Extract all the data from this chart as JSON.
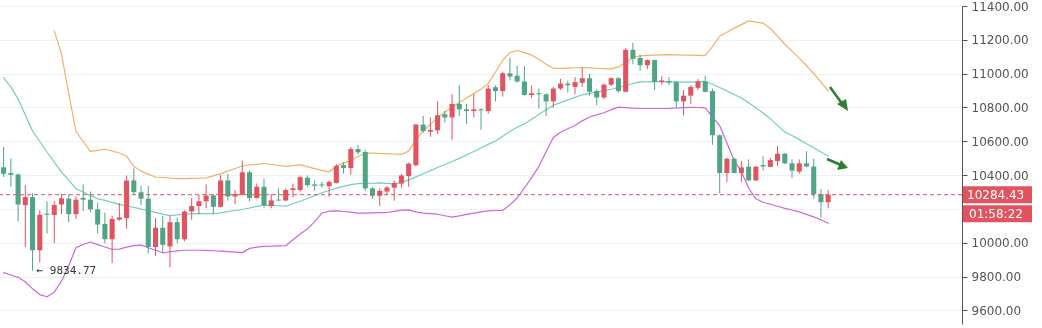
{
  "chart_data": {
    "type": "candlestick",
    "categories": [
      null,
      null,
      null,
      null,
      null,
      null,
      null,
      null,
      null,
      null,
      null,
      null,
      null,
      null,
      null,
      null,
      null,
      null,
      null,
      null,
      null,
      null,
      null,
      null,
      null,
      null,
      null,
      null,
      null,
      null,
      null,
      null,
      null,
      null,
      null,
      null,
      null,
      null,
      null,
      null,
      null,
      null,
      null,
      null,
      null,
      null,
      null,
      null,
      null,
      null,
      null,
      null,
      null,
      null,
      null,
      null,
      null,
      null,
      null,
      null,
      null,
      null,
      null,
      null,
      null,
      null,
      null,
      null,
      null,
      null,
      null,
      null,
      null,
      null,
      null,
      null,
      null,
      null,
      null,
      null,
      null,
      null,
      null,
      null,
      null,
      null,
      null,
      null,
      null,
      null,
      null,
      null,
      null,
      null,
      null,
      null,
      null,
      null,
      null,
      null,
      null,
      null,
      null,
      null,
      null,
      null,
      null,
      null,
      null,
      null,
      null,
      null,
      null,
      null,
      null,
      null,
      null,
      null,
      null,
      null,
      null,
      null,
      null,
      null,
      null,
      null,
      null,
      null,
      null,
      null,
      null,
      null,
      null
    ],
    "ohlc": [
      [
        10446,
        10566,
        10389,
        10408
      ],
      [
        10413,
        10499,
        10331,
        10402
      ],
      [
        10404,
        10410,
        10127,
        10227
      ],
      [
        10223,
        10341,
        9975,
        10270
      ],
      [
        10270,
        10293,
        9834.77,
        9956
      ],
      [
        9956,
        10193,
        9884,
        10166
      ],
      [
        10173,
        10246,
        10055,
        10166
      ],
      [
        10164,
        10246,
        9998,
        10223
      ],
      [
        10227,
        10288,
        10169,
        10263
      ],
      [
        10261,
        10288,
        10122,
        10169
      ],
      [
        10169,
        10274,
        10141,
        10255
      ],
      [
        10265,
        10345,
        10188,
        10255
      ],
      [
        10255,
        10303,
        10179,
        10198
      ],
      [
        10198,
        10236,
        10055,
        10108
      ],
      [
        10112,
        10179,
        9998,
        10021
      ],
      [
        10021,
        10160,
        9880,
        10141
      ],
      [
        10137,
        10236,
        10131,
        10150
      ],
      [
        10146,
        10398,
        10084,
        10369
      ],
      [
        10369,
        10440,
        10284,
        10299
      ],
      [
        10299,
        10337,
        10223,
        10261
      ],
      [
        10261,
        10337,
        9937,
        9975
      ],
      [
        9975,
        10146,
        9922,
        10089
      ],
      [
        10089,
        10160,
        9941,
        9988
      ],
      [
        9979,
        10160,
        9855,
        10122
      ],
      [
        10122,
        10150,
        9998,
        10021
      ],
      [
        10021,
        10193,
        10008,
        10185
      ],
      [
        10185,
        10265,
        10137,
        10217
      ],
      [
        10217,
        10284,
        10169,
        10246
      ],
      [
        10246,
        10345,
        10204,
        10280
      ],
      [
        10280,
        10288,
        10169,
        10213
      ],
      [
        10213,
        10402,
        10210,
        10369
      ],
      [
        10369,
        10408,
        10249,
        10274
      ],
      [
        10274,
        10312,
        10227,
        10288
      ],
      [
        10284,
        10484,
        10280,
        10417
      ],
      [
        10417,
        10427,
        10246,
        10265
      ],
      [
        10265,
        10350,
        10261,
        10331
      ],
      [
        10331,
        10379,
        10208,
        10223
      ],
      [
        10217,
        10288,
        10204,
        10251
      ],
      [
        10255,
        10322,
        10246,
        10250
      ],
      [
        10250,
        10322,
        10246,
        10312
      ],
      [
        10312,
        10350,
        10268,
        10322
      ],
      [
        10312,
        10398,
        10303,
        10388
      ],
      [
        10385,
        10398,
        10331,
        10341
      ],
      [
        10345,
        10369,
        10307,
        10337
      ],
      [
        10345,
        10360,
        10326,
        10339
      ],
      [
        10335,
        10369,
        10274,
        10360
      ],
      [
        10354,
        10465,
        10350,
        10455
      ],
      [
        10459,
        10478,
        10408,
        10442
      ],
      [
        10442,
        10566,
        10402,
        10554
      ],
      [
        10554,
        10579,
        10522,
        10535
      ],
      [
        10537,
        10550,
        10307,
        10322
      ],
      [
        10322,
        10331,
        10261,
        10278
      ],
      [
        10278,
        10322,
        10217,
        10307
      ],
      [
        10303,
        10335,
        10284,
        10327
      ],
      [
        10326,
        10369,
        10249,
        10354
      ],
      [
        10350,
        10408,
        10326,
        10398
      ],
      [
        10394,
        10474,
        10331,
        10468
      ],
      [
        10459,
        10703,
        10451,
        10699
      ],
      [
        10699,
        10750,
        10650,
        10661
      ],
      [
        10657,
        10741,
        10627,
        10667
      ],
      [
        10665,
        10836,
        10642,
        10754
      ],
      [
        10760,
        10779,
        10712,
        10741
      ],
      [
        10741,
        10878,
        10608,
        10821
      ],
      [
        10821,
        10931,
        10750,
        10789
      ],
      [
        10789,
        10821,
        10703,
        10779
      ],
      [
        10779,
        10878,
        10741,
        10789
      ],
      [
        10789,
        10795,
        10669,
        10783
      ],
      [
        10779,
        10931,
        10764,
        10912
      ],
      [
        10920,
        10931,
        10836,
        10897
      ],
      [
        10897,
        11011,
        10865,
        11002
      ],
      [
        11002,
        11093,
        10960,
        10983
      ],
      [
        10988,
        11046,
        10946,
        10954
      ],
      [
        10954,
        11046,
        10870,
        10874
      ],
      [
        10874,
        10931,
        10855,
        10884
      ],
      [
        10884,
        10912,
        10794,
        10878
      ],
      [
        10878,
        10884,
        10750,
        10836
      ],
      [
        10836,
        10922,
        10798,
        10912
      ],
      [
        10912,
        10969,
        10903,
        10941
      ],
      [
        10941,
        10960,
        10889,
        10931
      ],
      [
        10922,
        10979,
        10878,
        10950
      ],
      [
        10946,
        11036,
        10922,
        10973
      ],
      [
        10973,
        10998,
        10870,
        10893
      ],
      [
        10897,
        10908,
        10813,
        10859
      ],
      [
        10859,
        10941,
        10851,
        10935
      ],
      [
        10935,
        10979,
        10927,
        10973
      ],
      [
        10973,
        10979,
        10889,
        10897
      ],
      [
        10893,
        11150,
        10889,
        11141
      ],
      [
        11141,
        11183,
        11055,
        11088
      ],
      [
        11093,
        11112,
        11017,
        11050
      ],
      [
        11050,
        11084,
        11027,
        11080
      ],
      [
        11080,
        11084,
        10903,
        10950
      ],
      [
        10950,
        10985,
        10935,
        10960
      ],
      [
        10955,
        10979,
        10931,
        10947
      ],
      [
        10950,
        10955,
        10798,
        10836
      ],
      [
        10836,
        10903,
        10754,
        10870
      ],
      [
        10870,
        10931,
        10821,
        10922
      ],
      [
        10916,
        10969,
        10903,
        10954
      ],
      [
        10954,
        10988,
        10889,
        10893
      ],
      [
        10897,
        10912,
        10579,
        10636
      ],
      [
        10636,
        10640,
        10293,
        10413
      ],
      [
        10413,
        10503,
        10360,
        10497
      ],
      [
        10497,
        10503,
        10410,
        10413
      ],
      [
        10413,
        10484,
        10360,
        10446
      ],
      [
        10450,
        10493,
        10364,
        10369
      ],
      [
        10369,
        10455,
        10364,
        10450
      ],
      [
        10459,
        10512,
        10427,
        10451
      ],
      [
        10449,
        10503,
        10446,
        10489
      ],
      [
        10484,
        10573,
        10455,
        10527
      ],
      [
        10527,
        10531,
        10466,
        10470
      ],
      [
        10470,
        10493,
        10383,
        10427
      ],
      [
        10421,
        10493,
        10408,
        10470
      ],
      [
        10470,
        10541,
        10446,
        10451
      ],
      [
        10451,
        10497,
        10261,
        10288
      ],
      [
        10288,
        10318,
        10147,
        10240
      ],
      [
        10240,
        10312,
        10204,
        10284.43
      ],
      null,
      null,
      null,
      null,
      null,
      null,
      null,
      null,
      null,
      null,
      null,
      null,
      null,
      null,
      null,
      null,
      null,
      null
    ],
    "colors": [
      "#4fa585",
      "#4fa585",
      "#4fa585",
      "#e0535f",
      "#4fa585",
      "#e0535f",
      "#4fa585",
      "#e0535f",
      "#e0535f",
      "#4fa585",
      "#e0535f",
      "#4fa585",
      "#4fa585",
      "#4fa585",
      "#4fa585",
      "#e0535f",
      "#e0535f",
      "#e0535f",
      "#4fa585",
      "#4fa585",
      "#4fa585",
      "#e0535f",
      "#4fa585",
      "#e0535f",
      "#4fa585",
      "#e0535f",
      "#e0535f",
      "#e0535f",
      "#e0535f",
      "#4fa585",
      "#e0535f",
      "#4fa585",
      "#e0535f",
      "#e0535f",
      "#4fa585",
      "#e0535f",
      "#4fa585",
      "#e0535f",
      "#4fa585",
      "#e0535f",
      "#e0535f",
      "#e0535f",
      "#4fa585",
      "#4fa585",
      "#4fa585",
      "#e0535f",
      "#e0535f",
      "#4fa585",
      "#e0535f",
      "#4fa585",
      "#4fa585",
      "#4fa585",
      "#e0535f",
      "#e0535f",
      "#e0535f",
      "#e0535f",
      "#e0535f",
      "#e0535f",
      "#4fa585",
      "#e0535f",
      "#e0535f",
      "#4fa585",
      "#e0535f",
      "#4fa585",
      "#4fa585",
      "#e0535f",
      "#4fa585",
      "#e0535f",
      "#4fa585",
      "#e0535f",
      "#4fa585",
      "#4fa585",
      "#4fa585",
      "#e0535f",
      "#4fa585",
      "#4fa585",
      "#e0535f",
      "#e0535f",
      "#4fa585",
      "#e0535f",
      "#e0535f",
      "#4fa585",
      "#4fa585",
      "#e0535f",
      "#e0535f",
      "#4fa585",
      "#e0535f",
      "#4fa585",
      "#4fa585",
      "#e0535f",
      "#4fa585",
      "#e0535f",
      "#4fa585",
      "#4fa585",
      "#e0535f",
      "#e0535f",
      "#e0535f",
      "#4fa585",
      "#4fa585",
      "#4fa585",
      "#e0535f",
      "#4fa585",
      "#e0535f",
      "#4fa585",
      "#e0535f",
      "#4fa585",
      "#e0535f",
      "#e0535f",
      "#4fa585",
      "#4fa585",
      "#e0535f",
      "#4fa585",
      "#4fa585",
      "#4fa585",
      "#e0535f",
      null,
      null,
      null,
      null,
      null,
      null,
      null,
      null,
      null,
      null,
      null,
      null,
      null,
      null,
      null,
      null,
      null,
      null
    ],
    "series": [
      {
        "type": "line",
        "color": "#efb06a",
        "values": [
          null,
          null,
          null,
          null,
          null,
          null,
          null,
          11253,
          11117,
          10884,
          10659,
          10599,
          10541,
          10547,
          10553,
          10543,
          10531,
          10513,
          10451,
          10424,
          10406,
          10389,
          10386,
          10383,
          10380,
          10380,
          10381,
          10382,
          10384,
          10396,
          10409,
          10424,
          10439,
          10454,
          10460,
          10464,
          10469,
          10463,
          10457,
          10452,
          10456,
          10461,
          10450,
          10439,
          10428,
          10419,
          10454,
          10471,
          10487,
          10510,
          10531,
          10530,
          10528,
          10527,
          10525,
          10523,
          10542,
          10610,
          10662,
          10700,
          10740,
          10773,
          10802,
          10830,
          10856,
          10882,
          10908,
          10941,
          11010,
          11078,
          11125,
          11137,
          11124,
          11111,
          11083,
          11056,
          11032,
          11031,
          11033,
          11035,
          11036,
          11034,
          11032,
          11030,
          11028,
          11040,
          11067,
          11094,
          11105,
          11108,
          11110,
          11111,
          11112,
          11111,
          11110,
          11109,
          11108,
          11107,
          11160,
          11221,
          11245,
          11269,
          11290,
          11312,
          11305,
          11299,
          11267,
          11222,
          11174,
          11133,
          11092,
          11048,
          11001,
          10950,
          10899,
          null,
          null,
          null,
          null,
          null,
          null,
          null,
          null,
          null,
          null,
          null,
          null,
          null,
          null,
          null,
          null,
          null,
          null
        ]
      },
      {
        "type": "line",
        "color": "#6fd0bd",
        "values": [
          10976,
          10921,
          10851,
          10755,
          10661,
          10599,
          10537,
          10477,
          10418,
          10370,
          10320,
          10300,
          10279,
          10261,
          10251,
          10239,
          10227,
          10218,
          10209,
          10200,
          10190,
          10180,
          10170,
          10161,
          10165,
          10170,
          10173,
          10173,
          10173,
          10173,
          10177,
          10184,
          10191,
          10197,
          10206,
          10215,
          10223,
          10221,
          10219,
          10217,
          10231,
          10246,
          10262,
          10279,
          10296,
          10309,
          10323,
          10334,
          10344,
          10350,
          10351,
          10352,
          10354,
          10351,
          10347,
          10358,
          10371,
          10390,
          10408,
          10427,
          10445,
          10463,
          10481,
          10499,
          10519,
          10540,
          10561,
          10582,
          10602,
          10630,
          10660,
          10683,
          10703,
          10731,
          10758,
          10786,
          10813,
          10829,
          10845,
          10860,
          10875,
          10883,
          10891,
          10900,
          10908,
          10918,
          10930,
          10942,
          10951,
          10952,
          10954,
          10953,
          10952,
          10951,
          10950,
          10950,
          10952,
          10954,
          10937,
          10918,
          10898,
          10877,
          10856,
          10828,
          10798,
          10767,
          10734,
          10694,
          10655,
          10634,
          10610,
          10586,
          10562,
          10537,
          10513,
          null,
          null,
          null,
          null,
          null,
          null,
          null,
          null,
          null,
          null,
          null,
          null,
          null,
          null,
          null,
          null,
          null,
          null
        ]
      },
      {
        "type": "line",
        "color": "#cc66d9",
        "values": [
          9824,
          9810,
          9796,
          9770,
          9728,
          9694,
          9681,
          9708,
          9773,
          9864,
          9971,
          9990,
          10005,
          9989,
          9975,
          9962,
          9963,
          9974,
          9983,
          9986,
          9971,
          9956,
          9941,
          9947,
          9952,
          9956,
          9956,
          9956,
          9955,
          9953,
          9951,
          9948,
          9945,
          9942,
          9967,
          9974,
          9979,
          9980,
          9982,
          9983,
          10018,
          10052,
          10081,
          10125,
          10175,
          10187,
          10189,
          10185,
          10181,
          10176,
          10176,
          10177,
          10178,
          10179,
          10186,
          10193,
          10195,
          10183,
          10175,
          10172,
          10169,
          10160,
          10152,
          10159,
          10168,
          10176,
          10183,
          10189,
          10191,
          10192,
          10224,
          10265,
          10324,
          10385,
          10452,
          10538,
          10623,
          10654,
          10674,
          10694,
          10721,
          10744,
          10756,
          10769,
          10787,
          10802,
          10799,
          10796,
          10794,
          10794,
          10794,
          10794,
          10795,
          10797,
          10799,
          10801,
          10800,
          10798,
          10744,
          10693,
          10590,
          10486,
          10420,
          10324,
          10260,
          10240,
          10228,
          10216,
          10204,
          10194,
          10183,
          10168,
          10153,
          10136,
          10116,
          null,
          null,
          null,
          null,
          null,
          null,
          null,
          null,
          null,
          null,
          null,
          null,
          null,
          null,
          null,
          null,
          null,
          null
        ]
      }
    ],
    "ylim": [
      9520,
      11400
    ],
    "yticks": [
      {
        "value": 9600,
        "label": "9600.00"
      },
      {
        "value": 9800,
        "label": "9800.00"
      },
      {
        "value": 10000,
        "label": "10000.00"
      },
      {
        "value": 10200,
        "label": null
      },
      {
        "value": 10400,
        "label": "10400.00"
      },
      {
        "value": 10600,
        "label": "10600.00"
      },
      {
        "value": 10800,
        "label": "10800.00"
      },
      {
        "value": 11000,
        "label": "11000.00"
      },
      {
        "value": 11200,
        "label": "11200.00"
      },
      {
        "value": 11400,
        "label": "11400.00"
      }
    ],
    "ref_lines": [
      {
        "axis": "y",
        "value": 10284.43,
        "label": "10284.43",
        "color": "#e0535f",
        "line_style": "dashed"
      }
    ],
    "annotations": [
      "01:58:22",
      {
        "text": "← 9834.77",
        "y": 9834.77
      }
    ],
    "grid": "y",
    "tick_labels": "y"
  }
}
